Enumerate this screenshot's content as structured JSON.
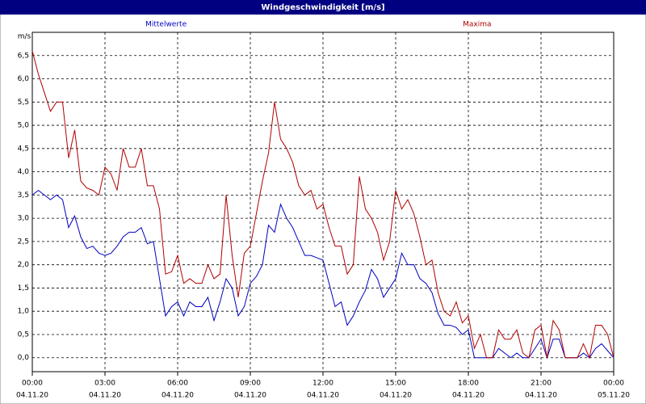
{
  "chart_data": {
    "type": "line",
    "title": "Windgeschwindigkeit [m/s]",
    "y_label": "m/s",
    "x": [
      0,
      0.25,
      0.5,
      0.75,
      1,
      1.25,
      1.5,
      1.75,
      2,
      2.25,
      2.5,
      2.75,
      3,
      3.25,
      3.5,
      3.75,
      4,
      4.25,
      4.5,
      4.75,
      5,
      5.25,
      5.5,
      5.75,
      6,
      6.25,
      6.5,
      6.75,
      7,
      7.25,
      7.5,
      7.75,
      8,
      8.25,
      8.5,
      8.75,
      9,
      9.25,
      9.5,
      9.75,
      10,
      10.25,
      10.5,
      10.75,
      11,
      11.25,
      11.5,
      11.75,
      12,
      12.25,
      12.5,
      12.75,
      13,
      13.25,
      13.5,
      13.75,
      14,
      14.25,
      14.5,
      14.75,
      15,
      15.25,
      15.5,
      15.75,
      16,
      16.25,
      16.5,
      16.75,
      17,
      17.25,
      17.5,
      17.75,
      18,
      18.25,
      18.5,
      18.75,
      19,
      19.25,
      19.5,
      19.75,
      20,
      20.25,
      20.5,
      20.75,
      21,
      21.25,
      21.5,
      21.75,
      22,
      22.25,
      22.5,
      22.75,
      23,
      23.25,
      23.5,
      23.75,
      24
    ],
    "xlim": [
      0,
      24
    ],
    "xticks": [
      {
        "value": 0,
        "label": "00:00"
      },
      {
        "value": 3,
        "label": "03:00"
      },
      {
        "value": 6,
        "label": "06:00"
      },
      {
        "value": 9,
        "label": "09:00"
      },
      {
        "value": 12,
        "label": "12:00"
      },
      {
        "value": 15,
        "label": "15:00"
      },
      {
        "value": 18,
        "label": "18:00"
      },
      {
        "value": 21,
        "label": "21:00"
      },
      {
        "value": 24,
        "label": "00:00"
      }
    ],
    "xtick_dates": [
      "04.11.20",
      "04.11.20",
      "04.11.20",
      "04.11.20",
      "04.11.20",
      "04.11.20",
      "04.11.20",
      "04.11.20",
      "05.11.20"
    ],
    "ylim": [
      -0.3,
      7.0
    ],
    "yticks": [
      {
        "value": 0,
        "label": "0,0"
      },
      {
        "value": 0.5,
        "label": "0,5"
      },
      {
        "value": 1,
        "label": "1,0"
      },
      {
        "value": 1.5,
        "label": "1,5"
      },
      {
        "value": 2,
        "label": "2,0"
      },
      {
        "value": 2.5,
        "label": "2,5"
      },
      {
        "value": 3,
        "label": "3,0"
      },
      {
        "value": 3.5,
        "label": "3,5"
      },
      {
        "value": 4,
        "label": "4,0"
      },
      {
        "value": 4.5,
        "label": "4,5"
      },
      {
        "value": 5,
        "label": "5,0"
      },
      {
        "value": 5.5,
        "label": "5,5"
      },
      {
        "value": 6,
        "label": "6,0"
      },
      {
        "value": 6.5,
        "label": "6,5"
      }
    ],
    "grid": true,
    "series": [
      {
        "name": "Mittelwerte",
        "color": "#0000c0",
        "values": [
          3.5,
          3.6,
          3.5,
          3.4,
          3.5,
          3.4,
          2.8,
          3.05,
          2.6,
          2.35,
          2.4,
          2.25,
          2.2,
          2.25,
          2.4,
          2.6,
          2.7,
          2.7,
          2.8,
          2.45,
          2.5,
          1.7,
          0.9,
          1.1,
          1.2,
          0.9,
          1.2,
          1.1,
          1.1,
          1.3,
          0.8,
          1.2,
          1.7,
          1.5,
          0.9,
          1.1,
          1.6,
          1.75,
          2.0,
          2.85,
          2.7,
          3.3,
          3.0,
          2.8,
          2.5,
          2.2,
          2.2,
          2.15,
          2.1,
          1.6,
          1.1,
          1.2,
          0.7,
          0.9,
          1.2,
          1.45,
          1.9,
          1.7,
          1.3,
          1.5,
          1.7,
          2.25,
          2.0,
          2.0,
          1.7,
          1.6,
          1.4,
          0.95,
          0.7,
          0.7,
          0.65,
          0.5,
          0.6,
          0,
          0,
          0,
          0,
          0.2,
          0.1,
          0,
          0.1,
          0,
          0,
          0.2,
          0.4,
          0,
          0.4,
          0.4,
          0,
          0,
          0,
          0.1,
          0,
          0.2,
          0.3,
          0.15,
          0
        ]
      },
      {
        "name": "Maxima",
        "color": "#b00000",
        "values": [
          6.6,
          6.1,
          5.7,
          5.3,
          5.5,
          5.5,
          4.3,
          4.9,
          3.8,
          3.65,
          3.6,
          3.5,
          4.1,
          3.95,
          3.6,
          4.5,
          4.1,
          4.1,
          4.5,
          3.7,
          3.7,
          3.2,
          1.8,
          1.85,
          2.2,
          1.6,
          1.7,
          1.6,
          1.6,
          2.0,
          1.7,
          1.8,
          3.5,
          2.2,
          1.3,
          2.25,
          2.4,
          3.1,
          3.8,
          4.4,
          5.5,
          4.7,
          4.5,
          4.2,
          3.7,
          3.5,
          3.6,
          3.2,
          3.3,
          2.8,
          2.4,
          2.4,
          1.8,
          2.0,
          3.9,
          3.2,
          3.0,
          2.7,
          2.1,
          2.5,
          3.6,
          3.2,
          3.4,
          3.1,
          2.6,
          2.0,
          2.1,
          1.4,
          1.0,
          0.9,
          1.2,
          0.75,
          0.9,
          0.2,
          0.5,
          0,
          0,
          0.6,
          0.4,
          0.4,
          0.6,
          0.1,
          0,
          0.6,
          0.7,
          0,
          0.8,
          0.6,
          0,
          0,
          0,
          0.3,
          0,
          0.7,
          0.7,
          0.5,
          0
        ]
      }
    ]
  }
}
